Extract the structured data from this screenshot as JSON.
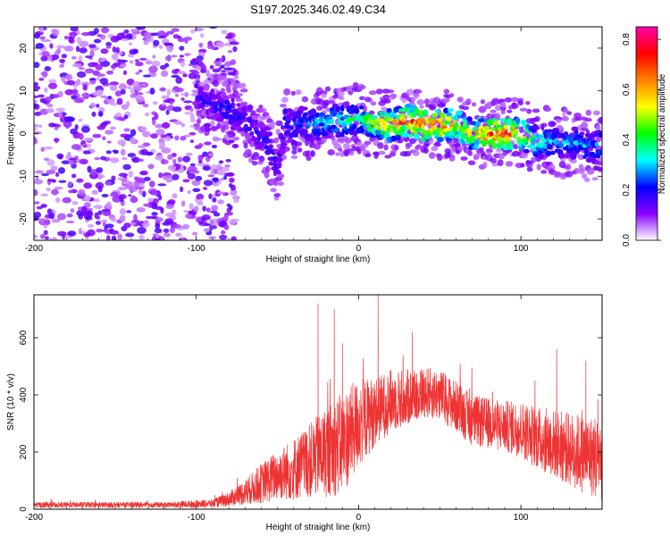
{
  "figure": {
    "title": "S197.2025.346.02.49.C34"
  },
  "chart_data": [
    {
      "type": "heatmap",
      "title": "",
      "xlabel": "Height of straight line (km)",
      "ylabel": "Frequency (Hz)",
      "xlim": [
        -200,
        150
      ],
      "ylim": [
        -25,
        25
      ],
      "x_ticks": [
        -200,
        -100,
        0,
        100
      ],
      "y_ticks": [
        -20,
        -10,
        0,
        10,
        20
      ],
      "colorbar": {
        "label": "Normalized spectral amplitude",
        "range": [
          0,
          0.85
        ],
        "ticks": [
          0,
          0.2,
          0.4,
          0.6,
          0.8
        ],
        "colors": [
          "#ffffff",
          "#8a00ff",
          "#0000ff",
          "#00ffff",
          "#00ff00",
          "#ffff00",
          "#ff8000",
          "#ff0000",
          "#ff00aa"
        ]
      },
      "ridge": {
        "x": [
          -100,
          -90,
          -80,
          -70,
          -60,
          -55,
          -50,
          -45,
          -40,
          -35,
          -30,
          -20,
          -10,
          0,
          10,
          20,
          30,
          40,
          50,
          60,
          70,
          80,
          90,
          100,
          110,
          120,
          130,
          140,
          150
        ],
        "freq": [
          9,
          7,
          5,
          3,
          -1,
          -3,
          -8,
          3,
          1,
          3,
          2,
          3,
          3,
          3.5,
          2.5,
          2,
          3,
          2,
          2,
          2,
          0,
          0,
          0,
          0,
          -2,
          -2,
          -2,
          -3,
          -3
        ],
        "amp": [
          0.2,
          0.2,
          0.25,
          0.2,
          0.22,
          0.22,
          0.2,
          0.25,
          0.25,
          0.3,
          0.3,
          0.35,
          0.38,
          0.4,
          0.55,
          0.62,
          0.7,
          0.75,
          0.72,
          0.6,
          0.55,
          0.75,
          0.78,
          0.6,
          0.4,
          0.3,
          0.3,
          0.3,
          0.3
        ]
      },
      "noise_region_x": [
        -200,
        -75
      ]
    },
    {
      "type": "line",
      "title": "",
      "xlabel": "Height of straight line (km)",
      "ylabel": "SNR (10 * v/v)",
      "xlim": [
        -200,
        150
      ],
      "ylim": [
        0,
        750
      ],
      "x_ticks": [
        -200,
        -100,
        0,
        100
      ],
      "y_ticks": [
        0,
        200,
        400,
        600
      ],
      "series": [
        {
          "name": "SNR",
          "color": "#ee3333",
          "envelope_x": [
            -200,
            -120,
            -90,
            -80,
            -70,
            -60,
            -50,
            -40,
            -30,
            -20,
            -10,
            0,
            10,
            20,
            30,
            40,
            50,
            60,
            70,
            80,
            90,
            100,
            110,
            120,
            130,
            140,
            150
          ],
          "envelope_mean": [
            15,
            15,
            20,
            35,
            60,
            90,
            120,
            140,
            170,
            200,
            230,
            300,
            340,
            380,
            390,
            410,
            400,
            360,
            310,
            300,
            290,
            280,
            250,
            230,
            210,
            190,
            180
          ],
          "envelope_spread": [
            10,
            10,
            15,
            25,
            45,
            70,
            90,
            110,
            130,
            160,
            180,
            160,
            120,
            110,
            100,
            90,
            90,
            90,
            90,
            90,
            90,
            100,
            110,
            120,
            130,
            140,
            150
          ],
          "peaks": [
            {
              "x": -25,
              "y": 720
            },
            {
              "x": -15,
              "y": 700
            },
            {
              "x": 12,
              "y": 750
            },
            {
              "x": -10,
              "y": 580
            },
            {
              "x": 33,
              "y": 620
            },
            {
              "x": 122,
              "y": 560
            },
            {
              "x": 140,
              "y": 520
            }
          ]
        }
      ]
    }
  ]
}
